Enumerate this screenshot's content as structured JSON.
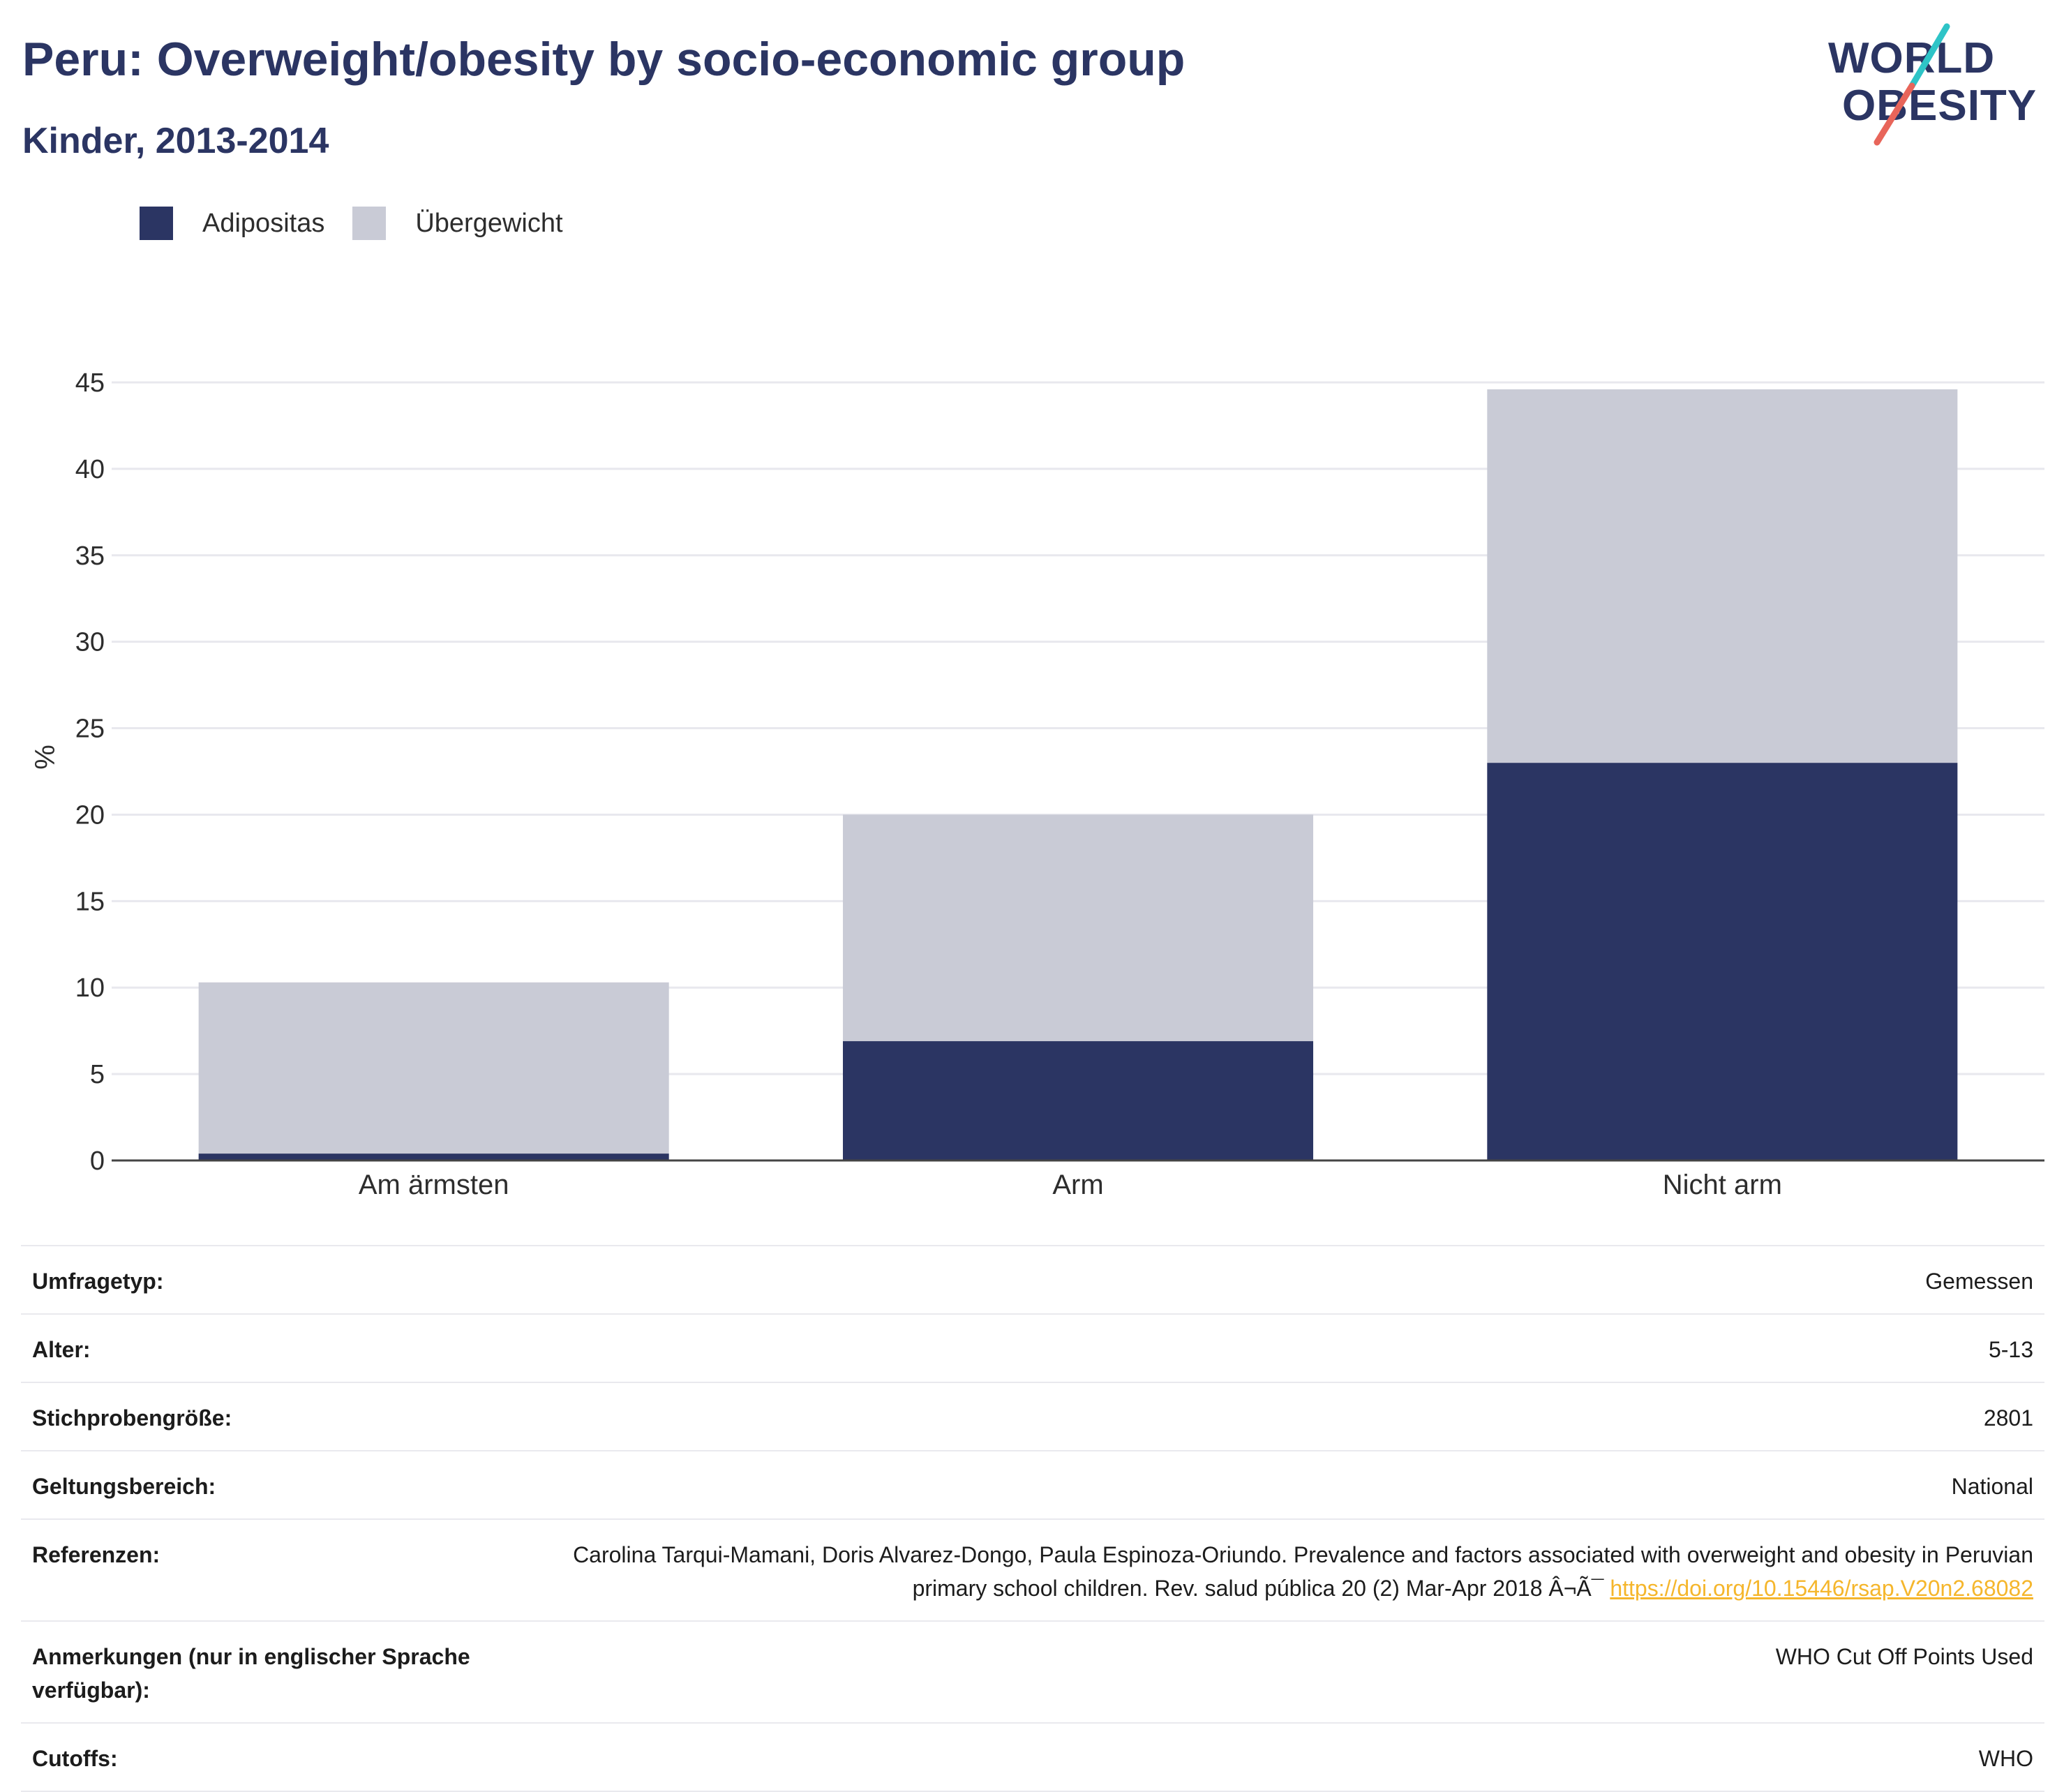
{
  "header": {
    "title": "Peru: Overweight/obesity by socio-economic group",
    "subtitle": "Kinder, 2013-2014"
  },
  "logo": {
    "line1": "WORLD",
    "line2": "OBESITY",
    "colors": {
      "text": "#2b3563",
      "accent_teal": "#2ec4c7",
      "accent_red": "#e8655a"
    }
  },
  "legend": {
    "items": [
      {
        "label": "Adipositas",
        "color": "#2b3563"
      },
      {
        "label": "Übergewicht",
        "color": "#c9cbd6"
      }
    ]
  },
  "chart_data": {
    "type": "bar",
    "stacked": true,
    "title": "Peru: Overweight/obesity by socio-economic group",
    "subtitle": "Kinder, 2013-2014",
    "xlabel": "",
    "ylabel": "%",
    "ylim": [
      0,
      45
    ],
    "yticks": [
      0,
      5,
      10,
      15,
      20,
      25,
      30,
      35,
      40,
      45
    ],
    "grid": true,
    "legend_position": "top-left",
    "categories": [
      "Am ärmsten",
      "Arm",
      "Nicht arm"
    ],
    "series": [
      {
        "name": "Adipositas",
        "color": "#2b3563",
        "values": [
          0.4,
          6.9,
          23.0
        ]
      },
      {
        "name": "Übergewicht",
        "color": "#c9cbd6",
        "values": [
          9.9,
          13.1,
          21.6
        ]
      }
    ]
  },
  "info": {
    "rows": [
      {
        "key": "Umfragetyp:",
        "value": "Gemessen"
      },
      {
        "key": "Alter:",
        "value": "5-13"
      },
      {
        "key": "Stichprobengröße:",
        "value": "2801"
      },
      {
        "key": "Geltungsbereich:",
        "value": "National"
      },
      {
        "key": "Referenzen:",
        "value": "Carolina Tarqui-Mamani, Doris Alvarez-Dongo, Paula Espinoza-Oriundo. Prevalence and factors associated with overweight and obesity in Peruvian primary school children. Rev. salud pública 20 (2) Mar-Apr 2018 Â¬Ã¯",
        "link": "https://doi.org/10.15446/rsap.V20n2.68082"
      },
      {
        "key": "Anmerkungen (nur in englischer Sprache verfügbar):",
        "value": "WHO Cut Off Points Used"
      },
      {
        "key": "Cutoffs:",
        "value": "WHO"
      }
    ]
  }
}
